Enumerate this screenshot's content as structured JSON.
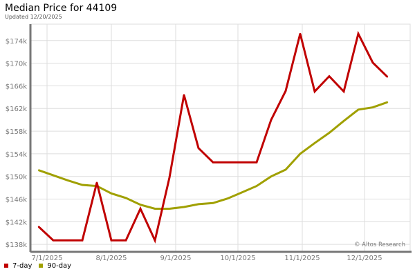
{
  "title": "Median Price for 44109",
  "subtitle": "Updated 12/20/2025",
  "watermark": "© Altos Research",
  "chart_data": {
    "type": "line",
    "title": "Median Price for 44109",
    "xlabel": "",
    "ylabel": "",
    "ylim": [
      136800,
      176900
    ],
    "xlim": [
      "2025-06-23",
      "2025-12-23"
    ],
    "grid": true,
    "legend_position": "bottom-left",
    "y_ticks": [
      {
        "value": 138000,
        "label": "$138k"
      },
      {
        "value": 142000,
        "label": "$142k"
      },
      {
        "value": 146000,
        "label": "$146k"
      },
      {
        "value": 150000,
        "label": "$150k"
      },
      {
        "value": 154000,
        "label": "$154k"
      },
      {
        "value": 158000,
        "label": "$158k"
      },
      {
        "value": 162000,
        "label": "$162k"
      },
      {
        "value": 166000,
        "label": "$166k"
      },
      {
        "value": 170000,
        "label": "$170k"
      },
      {
        "value": 174000,
        "label": "$174k"
      }
    ],
    "x_ticks": [
      {
        "value": "2025-07-01",
        "label": "7/1/2025"
      },
      {
        "value": "2025-08-01",
        "label": "8/1/2025"
      },
      {
        "value": "2025-09-01",
        "label": "9/1/2025"
      },
      {
        "value": "2025-10-01",
        "label": "10/1/2025"
      },
      {
        "value": "2025-11-01",
        "label": "11/1/2025"
      },
      {
        "value": "2025-12-01",
        "label": "12/1/2025"
      }
    ],
    "x": [
      "2025-06-27",
      "2025-07-04",
      "2025-07-11",
      "2025-07-18",
      "2025-07-25",
      "2025-08-01",
      "2025-08-08",
      "2025-08-15",
      "2025-08-22",
      "2025-08-29",
      "2025-09-05",
      "2025-09-12",
      "2025-09-19",
      "2025-09-26",
      "2025-10-03",
      "2025-10-10",
      "2025-10-17",
      "2025-10-24",
      "2025-10-31",
      "2025-11-07",
      "2025-11-14",
      "2025-11-21",
      "2025-11-28",
      "2025-12-05",
      "2025-12-12"
    ],
    "series": [
      {
        "name": "7-day",
        "color": "#c00000",
        "values": [
          141100,
          138700,
          138700,
          138700,
          148900,
          138700,
          138700,
          144300,
          138700,
          149800,
          164400,
          155000,
          152500,
          152500,
          152500,
          152500,
          160000,
          165100,
          175200,
          165000,
          167700,
          165000,
          175200,
          170100,
          167600
        ]
      },
      {
        "name": "90-day",
        "color": "#a0a000",
        "values": [
          151100,
          150200,
          149300,
          148500,
          148300,
          147000,
          146200,
          145000,
          144300,
          144300,
          144600,
          145100,
          145300,
          146100,
          147200,
          148300,
          150000,
          151200,
          154000,
          155900,
          157700,
          159800,
          161800,
          162200,
          163100
        ]
      }
    ]
  }
}
